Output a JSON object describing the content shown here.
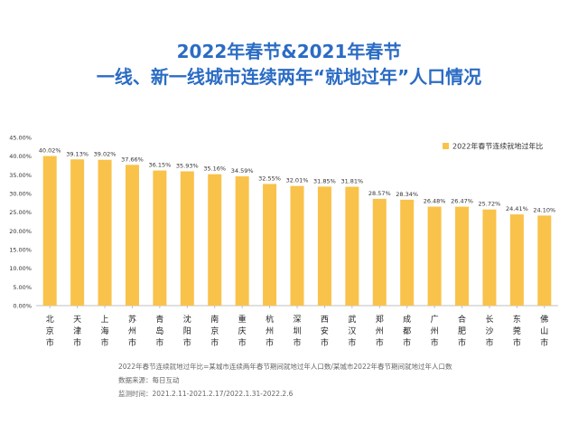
{
  "header": {
    "title_line1": "2022年春节&2021年春节",
    "title_line2": "一线、新一线城市连续两年“就地过年”人口情况"
  },
  "colors": {
    "title": "#2b6cc4",
    "bar": "#f9c24a",
    "bar_edge": "#f5b63a"
  },
  "chart_data": {
    "type": "bar",
    "title": "",
    "xlabel": "",
    "ylabel": "",
    "ylim": [
      0,
      45
    ],
    "y_ticks": [
      "0.00%",
      "5.00%",
      "10.00%",
      "15.00%",
      "20.00%",
      "25.00%",
      "30.00%",
      "35.00%",
      "40.00%",
      "45.00%"
    ],
    "grid": false,
    "legend_position": "top-right",
    "categories": [
      "北京市",
      "天津市",
      "上海市",
      "苏州市",
      "青岛市",
      "沈阳市",
      "南京市",
      "重庆市",
      "杭州市",
      "深圳市",
      "西安市",
      "武汉市",
      "郑州市",
      "成都市",
      "广州市",
      "合肥市",
      "长沙市",
      "东莞市",
      "佛山市"
    ],
    "series": [
      {
        "name": "2022年春节连续就地过年比",
        "values": [
          40.02,
          39.13,
          39.02,
          37.66,
          36.15,
          35.93,
          35.16,
          34.59,
          32.55,
          32.01,
          31.85,
          31.81,
          28.57,
          28.34,
          26.48,
          26.47,
          25.72,
          24.41,
          24.1
        ],
        "labels": [
          "40.02%",
          "39.13%",
          "39.02%",
          "37.66%",
          "36.15%",
          "35.93%",
          "35.16%",
          "34.59%",
          "32.55%",
          "32.01%",
          "31.85%",
          "31.81%",
          "28.57%",
          "28.34%",
          "26.48%",
          "26.47%",
          "25.72%",
          "24.41%",
          "24.10%"
        ]
      }
    ]
  },
  "notes": {
    "definition": "2022年春节连续就地过年比=某城市连续两年春节期间就地过年人口数/某城市2022年春节期间就地过年人口数",
    "source": "数据来源：每日互动",
    "period": "监测时间：2021.2.11-2021.2.17/2022.1.31-2022.2.6"
  }
}
